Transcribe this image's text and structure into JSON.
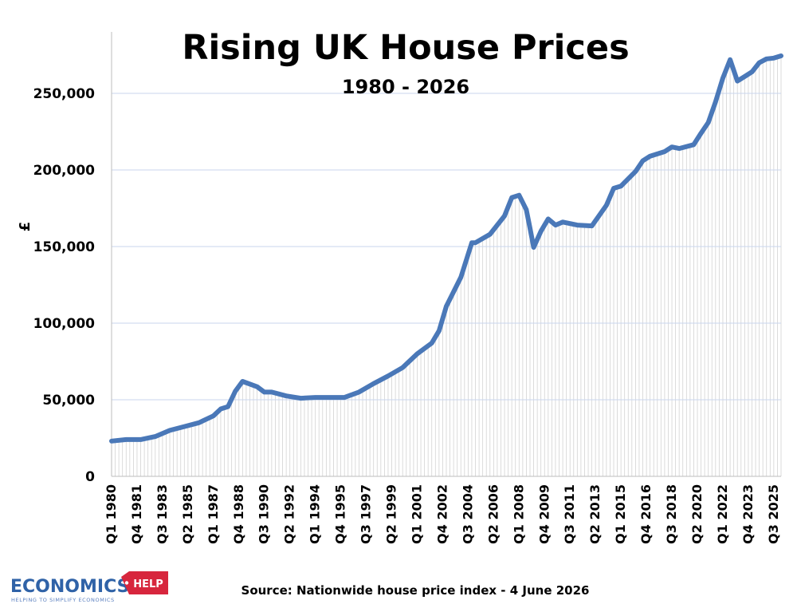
{
  "logo": {
    "main": "ECONOMICS",
    "badge": "HELP",
    "tagline": "HELPING TO SIMPLIFY ECONOMICS"
  },
  "source": "Source: Nationwide house price index - 4 June 2026",
  "colors": {
    "line": "#4a78b8",
    "gridline": "#c9d6ee",
    "dropline": "#d2d2d2",
    "logo_blue": "#2f62a7",
    "logo_red": "#d7263d"
  },
  "chart_data": {
    "type": "line",
    "title": "Rising UK House Prices",
    "subtitle": "1980 - 2026",
    "ylabel": "£",
    "xlabel": "",
    "ylim": [
      0,
      250000
    ],
    "yticks": [
      0,
      50000,
      100000,
      150000,
      200000,
      250000
    ],
    "ytick_labels": [
      "0",
      "50,000",
      "100,000",
      "150,000",
      "200,000",
      "250,000"
    ],
    "x_start": "Q1 1980",
    "x_end": "Q1 2026",
    "xtick_labels": [
      "Q1 1980",
      "Q4 1981",
      "Q3 1983",
      "Q2 1985",
      "Q1 1987",
      "Q4 1988",
      "Q3 1990",
      "Q2 1992",
      "Q1 1994",
      "Q4 1995",
      "Q3 1997",
      "Q2 1999",
      "Q1 2001",
      "Q4 2002",
      "Q3 2004",
      "Q2 2006",
      "Q1 2008",
      "Q4 2009",
      "Q3 2011",
      "Q2 2013",
      "Q1 2015",
      "Q4 2016",
      "Q3 2018",
      "Q2 2020",
      "Q1 2022",
      "Q4 2023",
      "Q3 2025"
    ],
    "grid": true,
    "legend": "none",
    "series": [
      {
        "points": [
          [
            "Q1 1980",
            23000
          ],
          [
            "Q1 1981",
            24000
          ],
          [
            "Q1 1982",
            24000
          ],
          [
            "Q1 1983",
            26000
          ],
          [
            "Q1 1984",
            30000
          ],
          [
            "Q1 1985",
            32500
          ],
          [
            "Q1 1986",
            35000
          ],
          [
            "Q1 1987",
            39500
          ],
          [
            "Q3 1987",
            44000
          ],
          [
            "Q1 1988",
            45500
          ],
          [
            "Q3 1988",
            55500
          ],
          [
            "Q1 1989",
            62000
          ],
          [
            "Q1 1990",
            58500
          ],
          [
            "Q3 1990",
            55000
          ],
          [
            "Q1 1991",
            55000
          ],
          [
            "Q1 1992",
            52500
          ],
          [
            "Q1 1993",
            51000
          ],
          [
            "Q1 1994",
            51500
          ],
          [
            "Q1 1995",
            51500
          ],
          [
            "Q1 1996",
            51500
          ],
          [
            "Q1 1997",
            55000
          ],
          [
            "Q1 1998",
            60500
          ],
          [
            "Q1 1999",
            65500
          ],
          [
            "Q1 2000",
            71000
          ],
          [
            "Q1 2001",
            80000
          ],
          [
            "Q1 2002",
            87000
          ],
          [
            "Q3 2002",
            95000
          ],
          [
            "Q1 2003",
            111000
          ],
          [
            "Q1 2004",
            130000
          ],
          [
            "Q3 2004",
            145000
          ],
          [
            "Q4 2004",
            152500
          ],
          [
            "Q1 2005",
            152500
          ],
          [
            "Q1 2006",
            158000
          ],
          [
            "Q1 2007",
            170000
          ],
          [
            "Q3 2007",
            182000
          ],
          [
            "Q1 2008",
            183500
          ],
          [
            "Q3 2008",
            174000
          ],
          [
            "Q4 2008",
            162000
          ],
          [
            "Q1 2009",
            149500
          ],
          [
            "Q3 2009",
            160000
          ],
          [
            "Q1 2010",
            168000
          ],
          [
            "Q3 2010",
            164000
          ],
          [
            "Q1 2011",
            166000
          ],
          [
            "Q1 2012",
            164000
          ],
          [
            "Q1 2013",
            163500
          ],
          [
            "Q1 2014",
            177000
          ],
          [
            "Q3 2014",
            188000
          ],
          [
            "Q1 2015",
            189500
          ],
          [
            "Q1 2016",
            199000
          ],
          [
            "Q3 2016",
            206000
          ],
          [
            "Q1 2017",
            209000
          ],
          [
            "Q1 2018",
            212000
          ],
          [
            "Q3 2018",
            215000
          ],
          [
            "Q1 2019",
            214000
          ],
          [
            "Q1 2020",
            216500
          ],
          [
            "Q3 2020",
            224000
          ],
          [
            "Q1 2021",
            231000
          ],
          [
            "Q3 2021",
            244500
          ],
          [
            "Q1 2022",
            260000
          ],
          [
            "Q3 2022",
            272000
          ],
          [
            "Q1 2023",
            258000
          ],
          [
            "Q3 2023",
            261000
          ],
          [
            "Q1 2024",
            264000
          ],
          [
            "Q3 2024",
            270000
          ],
          [
            "Q1 2025",
            272500
          ],
          [
            "Q3 2025",
            273000
          ],
          [
            "Q1 2026",
            274500
          ]
        ]
      }
    ]
  }
}
